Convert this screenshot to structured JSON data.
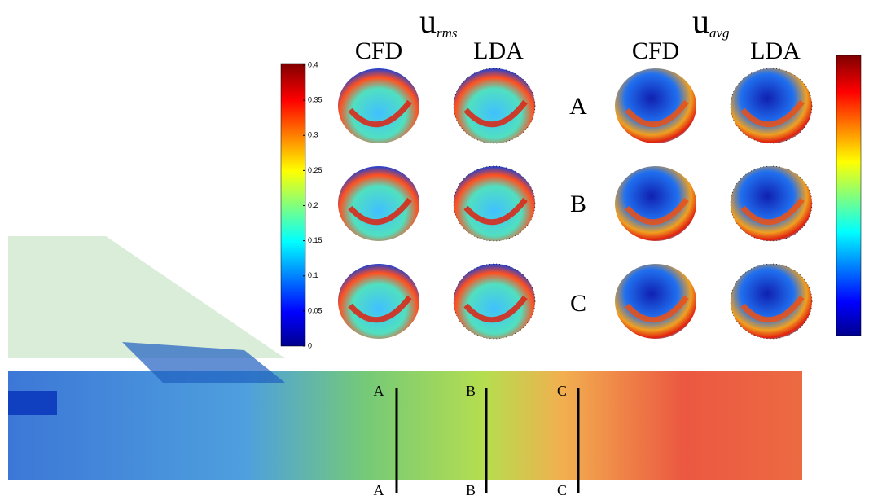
{
  "figure": {
    "titles": [
      {
        "main": "u",
        "sub": "rms"
      },
      {
        "main": "u",
        "sub": "avg"
      }
    ],
    "columns": [
      "CFD",
      "LDA",
      "CFD",
      "LDA"
    ],
    "rows": [
      "A",
      "B",
      "C"
    ],
    "colorbar_left": {
      "range": [
        0,
        0.4
      ],
      "ticks": [
        0,
        0.05,
        0.1,
        0.15,
        0.2,
        0.25,
        0.3,
        0.35,
        0.4
      ]
    },
    "sections": [
      "A",
      "B",
      "C"
    ]
  }
}
